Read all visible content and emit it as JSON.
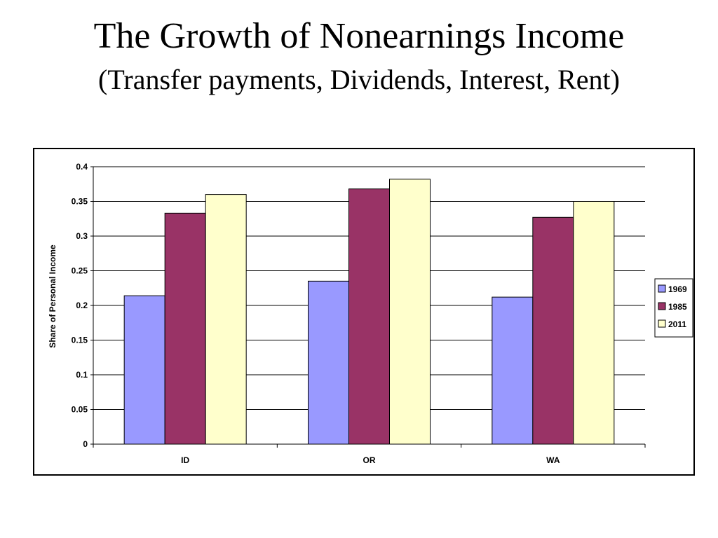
{
  "slide": {
    "title": "The Growth of Nonearnings Income",
    "subtitle": "(Transfer payments, Dividends, Interest, Rent)"
  },
  "chart_data": {
    "type": "bar",
    "title": "",
    "xlabel": "",
    "ylabel": "Share of Personal Income",
    "categories": [
      "ID",
      "OR",
      "WA"
    ],
    "series": [
      {
        "name": "1969",
        "color": "#9999ff",
        "values": [
          0.214,
          0.235,
          0.212
        ]
      },
      {
        "name": "1985",
        "color": "#993366",
        "values": [
          0.333,
          0.368,
          0.327
        ]
      },
      {
        "name": "2011",
        "color": "#ffffcc",
        "values": [
          0.36,
          0.382,
          0.35
        ]
      }
    ],
    "ylim": [
      0,
      0.4
    ],
    "yticks": [
      "0",
      "0.05",
      "0.1",
      "0.15",
      "0.2",
      "0.25",
      "0.3",
      "0.35",
      "0.4"
    ],
    "grid": true,
    "legend_position": "right"
  }
}
